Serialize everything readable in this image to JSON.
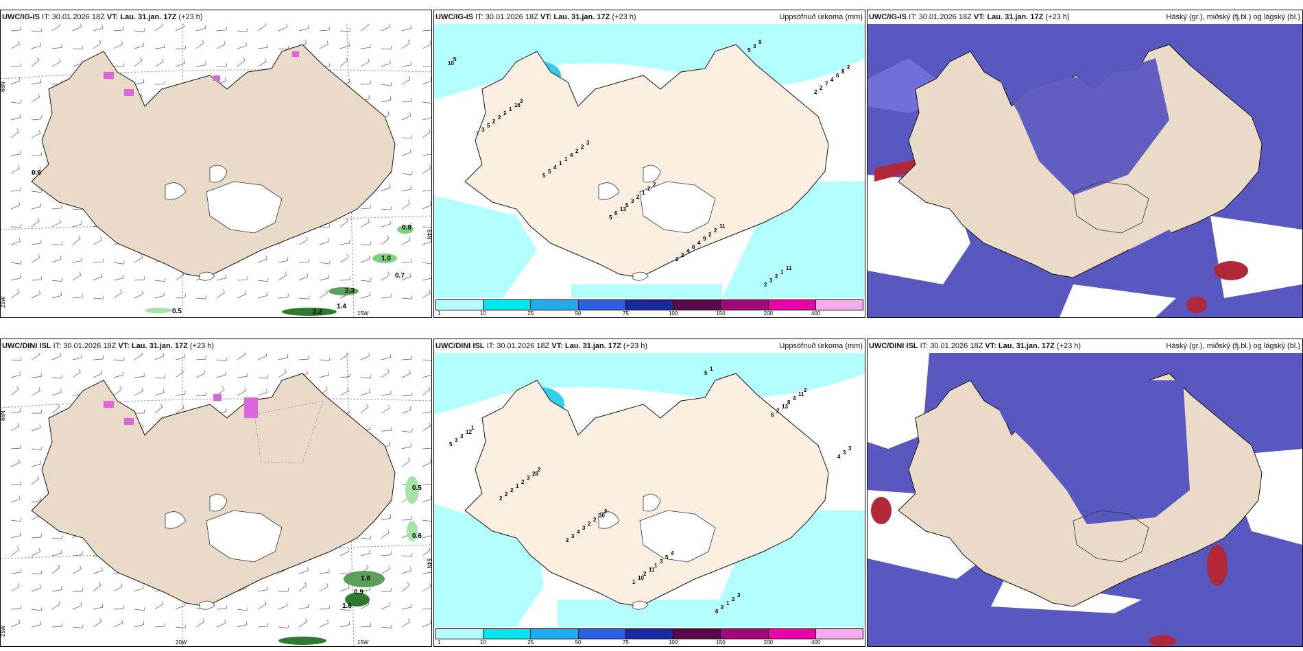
{
  "panels": [
    {
      "model": "UWC/IG-IS",
      "it": "IT: 30.01.2026 18Z",
      "vt": "VT: Lau. 31.jan. 17Z",
      "lead": "(+23 h)",
      "right": "",
      "type": "wind"
    },
    {
      "model": "UWC/IG-IS",
      "it": "IT: 30.01.2026 18Z",
      "vt": "VT: Lau. 31.jan. 17Z",
      "lead": "(+23 h)",
      "right": "Uppsöfnuð úrkoma (mm)",
      "type": "precip"
    },
    {
      "model": "UWC/IG-IS",
      "it": "IT: 30.01.2026 18Z",
      "vt": "VT: Lau. 31.jan. 17Z",
      "lead": "(+23 h)",
      "right": "Háský (gr.), miðský (fj.bl.) og lágský (bl.)",
      "type": "cloud"
    },
    {
      "model": "UWC/DINI ISL",
      "it": "IT: 30.01.2026 18Z",
      "vt": "VT: Lau. 31.jan. 17Z",
      "lead": "(+23 h)",
      "right": "",
      "type": "wind"
    },
    {
      "model": "UWC/DINI ISL",
      "it": "IT: 30.01.2026 18Z",
      "vt": "VT: Lau. 31.jan. 17Z",
      "lead": "(+23 h)",
      "right": "Uppsöfnuð úrkoma (mm)",
      "type": "precip"
    },
    {
      "model": "UWC/DINI ISL",
      "it": "IT: 30.01.2026 18Z",
      "vt": "VT: Lau. 31.jan. 17Z",
      "lead": "(+23 h)",
      "right": "Háský (gr.), miðský (fj.bl.) og lágský (bl.)",
      "type": "cloud"
    }
  ],
  "colorbar": {
    "ticks": [
      "1",
      "10",
      "25",
      "50",
      "75",
      "100",
      "150",
      "200",
      "400"
    ],
    "colors": [
      "#b3ffff",
      "#00e5ee",
      "#22aaee",
      "#2b60e0",
      "#1a2a9e",
      "#5a0a4a",
      "#9c0a7c",
      "#e800a8",
      "#f6aaf0"
    ]
  },
  "wind_top": {
    "lat_labels": [
      "66N",
      "64N",
      "25W"
    ],
    "lon_labels": [
      "15W"
    ],
    "values": [
      "0.6",
      "0.9",
      "1.0",
      "0.7",
      "2.3",
      "1.4",
      "2.2",
      "0.5"
    ]
  },
  "wind_bottom": {
    "lat_labels": [
      "66N",
      "64N",
      "25W"
    ],
    "lon_labels": [
      "20W",
      "15W"
    ],
    "values": [
      "0.5",
      "0.6",
      "1.8",
      "0.9",
      "1.6"
    ]
  },
  "precip_top_values": [
    "5",
    "3",
    "3",
    "2",
    "11",
    "11",
    "10",
    "16",
    "2",
    "2",
    "2",
    "1",
    "2",
    "1",
    "2",
    "1",
    "2",
    "2",
    "8",
    "2",
    "4",
    "2",
    "9",
    "3",
    "6",
    "2",
    "1",
    "3",
    "4",
    "2",
    "4",
    "2",
    "1",
    "5",
    "6",
    "9",
    "7",
    "5",
    "4",
    "13",
    "4",
    "3",
    "2",
    "3",
    "5",
    "6",
    "2",
    "5",
    "2",
    "7",
    "5",
    "5",
    "2"
  ],
  "precip_bottom_values": [
    "1",
    "2",
    "2",
    "4",
    "3",
    "2",
    "12",
    "28",
    "30",
    "5",
    "2",
    "11",
    "3",
    "3",
    "2",
    "3",
    "1",
    "4",
    "3",
    "2",
    "2",
    "1",
    "2",
    "8",
    "5",
    "1",
    "3",
    "11",
    "6",
    "13",
    "3",
    "2",
    "4",
    "2",
    "1",
    "2",
    "3",
    "2",
    "3",
    "10",
    "5",
    "6",
    "4",
    "2",
    "2",
    "1"
  ],
  "colors": {
    "land": "#eadbc8",
    "land_precip": "#fbefe2",
    "coast": "#111111",
    "cloud_high": "#5858c0",
    "cloud_low": "#7070d8",
    "cloud_red": "#b0283a",
    "precip_light": "#b3ffff",
    "green": "#7fd07f",
    "purple": "#dd66dd"
  }
}
